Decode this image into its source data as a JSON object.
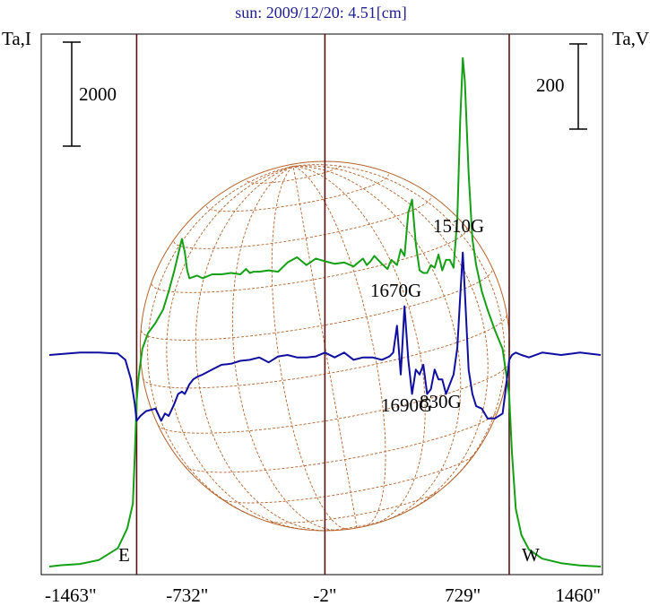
{
  "chart_data": {
    "type": "line",
    "title": "sun: 2009/12/20: 4.51[cm]",
    "y_left_label": "Ta,I",
    "y_right_label": "Ta,V",
    "scale_bar_left": "2000",
    "scale_bar_right": "200",
    "x_ticks": [
      "-1463\"",
      "-732\"",
      "-2\"",
      "729\"",
      "1460\""
    ],
    "x_tick_values": [
      -1463,
      -732,
      -2,
      729,
      1460
    ],
    "xlim": [
      -1463,
      1460
    ],
    "limb_markers": [
      {
        "label": "E",
        "x": -1000
      },
      {
        "label": "W",
        "x": 975
      }
    ],
    "center_marker_x": -2,
    "annotations": [
      {
        "text": "1510G",
        "x": 734,
        "y_rel": 0.61
      },
      {
        "text": "1670G",
        "x": 450,
        "y_rel": 0.5
      },
      {
        "text": "1690G",
        "x": 460,
        "y_rel": 0.31
      },
      {
        "text": "830G",
        "x": 710,
        "y_rel": 0.32
      }
    ],
    "series": [
      {
        "name": "I",
        "color": "#14a014",
        "x": [
          -1463,
          -1400,
          -1300,
          -1200,
          -1100,
          -1050,
          -1020,
          -1010,
          -1000,
          -990,
          -970,
          -940,
          -900,
          -860,
          -830,
          -800,
          -780,
          -760,
          -745,
          -732,
          -720,
          -700,
          -680,
          -650,
          -600,
          -550,
          -500,
          -450,
          -420,
          -400,
          -380,
          -350,
          -300,
          -250,
          -200,
          -150,
          -100,
          -50,
          -2,
          50,
          100,
          150,
          200,
          220,
          240,
          260,
          300,
          330,
          350,
          380,
          400,
          420,
          440,
          460,
          480,
          500,
          520,
          540,
          560,
          580,
          600,
          620,
          640,
          660,
          680,
          700,
          715,
          729,
          740,
          760,
          780,
          800,
          830,
          860,
          900,
          940,
          960,
          975,
          990,
          1010,
          1040,
          1080,
          1150,
          1250,
          1350,
          1460
        ],
        "y": [
          0,
          50,
          100,
          250,
          700,
          1450,
          2400,
          4200,
          6300,
          7200,
          8300,
          8900,
          9300,
          9800,
          10500,
          11300,
          11900,
          12500,
          12000,
          11300,
          11000,
          11050,
          11100,
          11000,
          11150,
          11150,
          11200,
          11150,
          11350,
          11200,
          11250,
          11250,
          11300,
          11250,
          11600,
          11800,
          11500,
          11750,
          11650,
          11550,
          11600,
          11450,
          11750,
          11500,
          11650,
          11850,
          11550,
          11350,
          11700,
          11500,
          12100,
          11850,
          13500,
          14000,
          12300,
          11300,
          11200,
          11200,
          11500,
          11400,
          11900,
          11300,
          11700,
          11700,
          11400,
          13300,
          17000,
          19400,
          18500,
          15000,
          12500,
          11500,
          10500,
          9800,
          9000,
          8300,
          7300,
          6500,
          4300,
          2200,
          1200,
          650,
          300,
          130,
          40,
          0
        ]
      },
      {
        "name": "V",
        "color": "#0f0f9f",
        "x": [
          -1463,
          -1300,
          -1200,
          -1100,
          -1060,
          -1030,
          -1010,
          -1000,
          -980,
          -950,
          -900,
          -870,
          -850,
          -830,
          -800,
          -780,
          -760,
          -745,
          -732,
          -720,
          -700,
          -680,
          -650,
          -600,
          -550,
          -500,
          -450,
          -400,
          -350,
          -300,
          -250,
          -200,
          -150,
          -100,
          -50,
          -2,
          50,
          100,
          150,
          200,
          250,
          300,
          340,
          360,
          380,
          400,
          420,
          440,
          460,
          480,
          500,
          520,
          540,
          560,
          580,
          600,
          620,
          640,
          660,
          680,
          700,
          715,
          729,
          740,
          760,
          780,
          800,
          830,
          860,
          900,
          940,
          960,
          975,
          990,
          1010,
          1040,
          1080,
          1150,
          1250,
          1350,
          1460
        ],
        "y": [
          0,
          5,
          5,
          3,
          -10,
          -50,
          -100,
          -135,
          -125,
          -115,
          -110,
          -135,
          -120,
          -125,
          -100,
          -80,
          -75,
          -80,
          -70,
          -60,
          -50,
          -45,
          -40,
          -30,
          -20,
          -18,
          -12,
          -10,
          -5,
          -15,
          -3,
          0,
          -5,
          -5,
          -3,
          5,
          -5,
          5,
          -10,
          -5,
          -5,
          -10,
          -3,
          5,
          60,
          -40,
          100,
          -10,
          -80,
          -30,
          -40,
          -20,
          -80,
          -70,
          -30,
          -50,
          -50,
          -80,
          -60,
          -40,
          15,
          120,
          210,
          130,
          -30,
          -80,
          -105,
          -110,
          -130,
          -130,
          -120,
          -60,
          -10,
          0,
          5,
          0,
          -5,
          5,
          0,
          5,
          0
        ]
      }
    ]
  }
}
